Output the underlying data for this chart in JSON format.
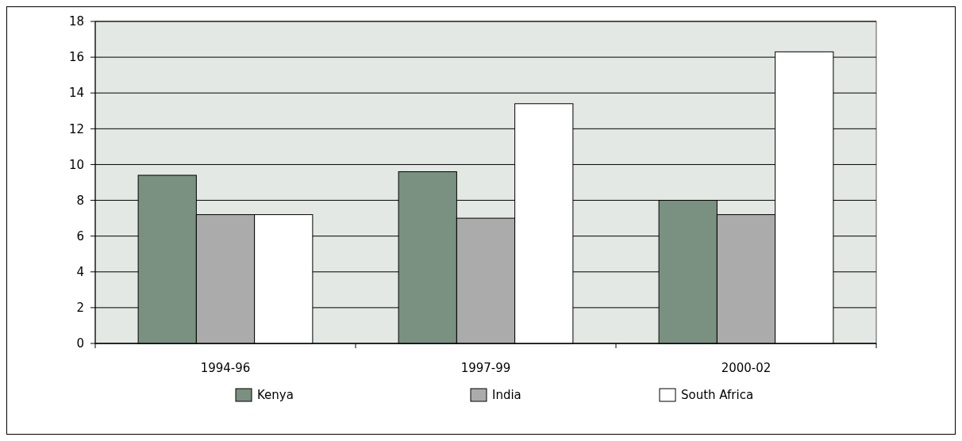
{
  "chart_data": {
    "type": "bar",
    "categories": [
      "1994-96",
      "1997-99",
      "2000-02"
    ],
    "series": [
      {
        "name": "Kenya",
        "color": "#7a9080",
        "values": [
          9.4,
          9.6,
          8.0
        ]
      },
      {
        "name": "India",
        "color": "#ababab",
        "values": [
          7.2,
          7.0,
          7.2
        ]
      },
      {
        "name": "South Africa",
        "color": "#ffffff",
        "values": [
          7.2,
          13.4,
          16.3
        ]
      }
    ],
    "ylim": [
      0,
      18
    ],
    "yticks": [
      0,
      2,
      4,
      6,
      8,
      10,
      12,
      14,
      16,
      18
    ],
    "grid": "y",
    "legend": "bottom"
  }
}
